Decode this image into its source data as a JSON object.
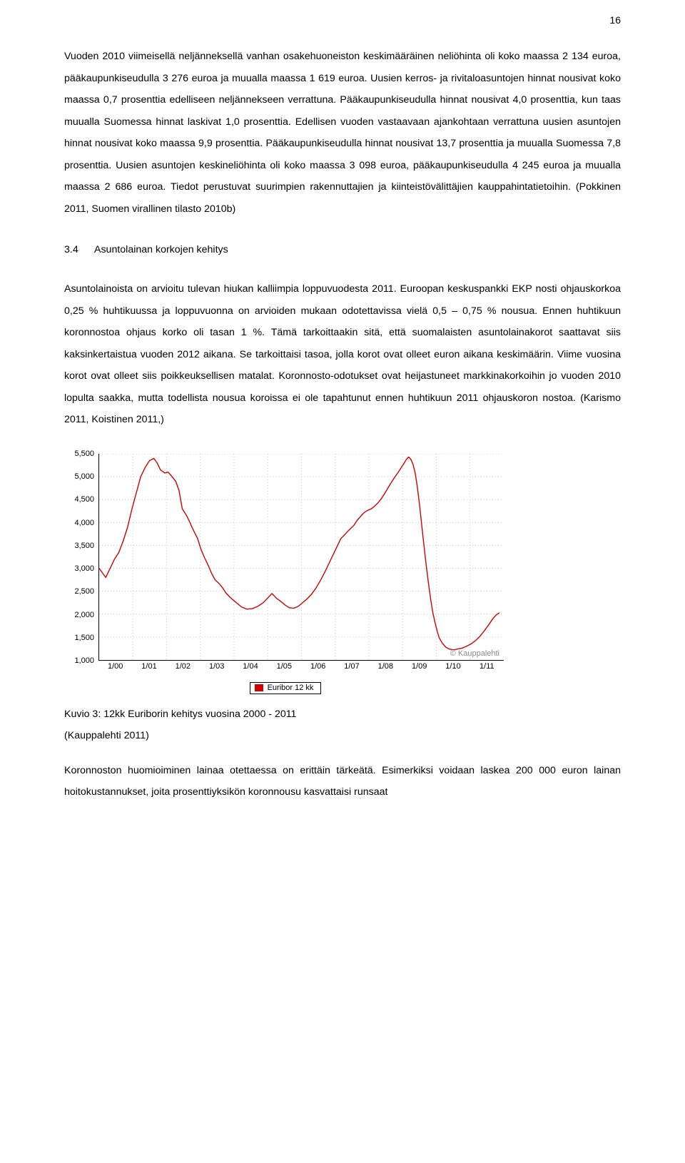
{
  "page_number": "16",
  "paragraph_1": "Vuoden 2010 viimeisellä neljänneksellä vanhan osakehuoneiston keskimääräinen neliöhinta oli koko maassa 2 134 euroa, pääkaupunkiseudulla 3 276 euroa ja muualla maassa 1 619 euroa. Uusien kerros- ja rivitaloasuntojen hinnat nousivat koko maassa 0,7 prosenttia edelliseen neljännekseen verrattuna. Pääkaupunkiseudulla hinnat nousivat 4,0 prosenttia, kun taas muualla Suomessa hinnat laskivat 1,0 prosenttia. Edellisen vuoden vastaavaan ajankohtaan verrattuna uusien asuntojen hinnat nousivat koko maassa 9,9 prosenttia. Pääkaupunkiseudulla hinnat nousivat 13,7 prosenttia ja muualla Suomessa 7,8 prosenttia. Uusien asuntojen keskineliöhinta oli koko maassa 3 098 euroa, pääkaupunkiseudulla 4 245 euroa ja muualla maassa 2 686 euroa. Tiedot perustuvat suurimpien rakennuttajien ja kiinteistövälittäjien kauppahintatietoihin. (Pokkinen 2011, Suomen virallinen tilasto 2010b)",
  "section_number": "3.4",
  "section_title": "Asuntolainan korkojen kehitys",
  "paragraph_2": "Asuntolainoista on arvioitu tulevan hiukan kalliimpia loppuvuodesta 2011. Euroopan keskuspankki EKP nosti ohjauskorkoa 0,25 % huhtikuussa ja loppuvuonna on arvioiden mukaan odotettavissa vielä 0,5 – 0,75 % nousua. Ennen huhtikuun koronnostoa ohjaus korko oli tasan 1 %. Tämä tarkoittaakin sitä, että suomalaisten asuntolainakorot saattavat siis kaksinkertaistua vuoden 2012 aikana. Se tarkoittaisi tasoa, jolla korot ovat olleet euron aikana keskimäärin. Viime vuosina korot ovat olleet siis poikkeuksellisen matalat. Koronnosto-odotukset ovat heijastuneet markkinakorkoihin jo vuoden 2010 lopulta saakka, mutta todellista nousua koroissa ei ole tapahtunut ennen huhtikuun 2011 ohjauskoron nostoa. (Karismo 2011, Koistinen 2011,)",
  "chart": {
    "type": "line",
    "y_min": 1000,
    "y_max": 5500,
    "y_tick_step": 500,
    "y_ticks": [
      "5,500",
      "5,000",
      "4,500",
      "4,000",
      "3,500",
      "3,000",
      "2,500",
      "2,000",
      "1,500",
      "1,000"
    ],
    "x_labels": [
      "1/00",
      "1/01",
      "1/02",
      "1/03",
      "1/04",
      "1/05",
      "1/06",
      "1/07",
      "1/08",
      "1/09",
      "1/10",
      "1/11"
    ],
    "line_color": "#d40000",
    "line_width": 1.4,
    "grid_color": "#c8c8c8",
    "background_color": "#ffffff",
    "axis_color": "#000000",
    "tick_font_size": 11,
    "watermark_text": "© Kauppalehti",
    "watermark_color": "#8a8a8a",
    "legend_label": "Euribor 12 kk",
    "legend_swatch_color": "#d40000",
    "series": [
      [
        0.0,
        3000
      ],
      [
        0.3,
        2900
      ],
      [
        0.6,
        2800
      ],
      [
        1.0,
        3000
      ],
      [
        1.4,
        3200
      ],
      [
        1.8,
        3350
      ],
      [
        2.2,
        3600
      ],
      [
        2.6,
        3900
      ],
      [
        3.0,
        4300
      ],
      [
        3.4,
        4650
      ],
      [
        3.8,
        5000
      ],
      [
        4.2,
        5200
      ],
      [
        4.6,
        5350
      ],
      [
        5.0,
        5400
      ],
      [
        5.3,
        5300
      ],
      [
        5.6,
        5150
      ],
      [
        6.0,
        5080
      ],
      [
        6.3,
        5100
      ],
      [
        6.6,
        5020
      ],
      [
        7.0,
        4900
      ],
      [
        7.3,
        4700
      ],
      [
        7.6,
        4300
      ],
      [
        8.0,
        4150
      ],
      [
        8.3,
        4000
      ],
      [
        8.6,
        3840
      ],
      [
        9.0,
        3650
      ],
      [
        9.3,
        3420
      ],
      [
        9.6,
        3250
      ],
      [
        10.0,
        3050
      ],
      [
        10.3,
        2880
      ],
      [
        10.6,
        2750
      ],
      [
        11.0,
        2660
      ],
      [
        11.3,
        2570
      ],
      [
        11.6,
        2460
      ],
      [
        12.0,
        2360
      ],
      [
        12.5,
        2260
      ],
      [
        13.0,
        2160
      ],
      [
        13.5,
        2110
      ],
      [
        14.0,
        2120
      ],
      [
        14.5,
        2170
      ],
      [
        15.0,
        2250
      ],
      [
        15.4,
        2350
      ],
      [
        15.8,
        2450
      ],
      [
        16.2,
        2350
      ],
      [
        16.6,
        2280
      ],
      [
        17.0,
        2200
      ],
      [
        17.4,
        2140
      ],
      [
        17.8,
        2130
      ],
      [
        18.2,
        2170
      ],
      [
        18.6,
        2250
      ],
      [
        19.0,
        2330
      ],
      [
        19.4,
        2430
      ],
      [
        19.8,
        2560
      ],
      [
        20.2,
        2720
      ],
      [
        20.6,
        2900
      ],
      [
        21.0,
        3100
      ],
      [
        21.4,
        3300
      ],
      [
        21.8,
        3500
      ],
      [
        22.1,
        3650
      ],
      [
        22.4,
        3720
      ],
      [
        22.7,
        3800
      ],
      [
        23.0,
        3870
      ],
      [
        23.3,
        3940
      ],
      [
        23.6,
        4050
      ],
      [
        24.0,
        4160
      ],
      [
        24.3,
        4230
      ],
      [
        24.6,
        4270
      ],
      [
        24.9,
        4300
      ],
      [
        25.2,
        4360
      ],
      [
        25.5,
        4430
      ],
      [
        25.8,
        4520
      ],
      [
        26.1,
        4630
      ],
      [
        26.4,
        4750
      ],
      [
        26.7,
        4870
      ],
      [
        27.0,
        4980
      ],
      [
        27.3,
        5080
      ],
      [
        27.6,
        5190
      ],
      [
        27.9,
        5300
      ],
      [
        28.1,
        5380
      ],
      [
        28.3,
        5430
      ],
      [
        28.5,
        5380
      ],
      [
        28.7,
        5270
      ],
      [
        28.9,
        5080
      ],
      [
        29.1,
        4770
      ],
      [
        29.3,
        4380
      ],
      [
        29.5,
        3940
      ],
      [
        29.7,
        3500
      ],
      [
        29.9,
        3080
      ],
      [
        30.1,
        2700
      ],
      [
        30.3,
        2350
      ],
      [
        30.5,
        2050
      ],
      [
        30.7,
        1830
      ],
      [
        30.9,
        1640
      ],
      [
        31.1,
        1480
      ],
      [
        31.4,
        1360
      ],
      [
        31.7,
        1280
      ],
      [
        32.0,
        1240
      ],
      [
        32.4,
        1220
      ],
      [
        32.8,
        1240
      ],
      [
        33.2,
        1260
      ],
      [
        33.6,
        1300
      ],
      [
        34.0,
        1350
      ],
      [
        34.4,
        1420
      ],
      [
        34.8,
        1510
      ],
      [
        35.2,
        1630
      ],
      [
        35.6,
        1760
      ],
      [
        36.0,
        1900
      ],
      [
        36.3,
        1980
      ],
      [
        36.6,
        2030
      ]
    ]
  },
  "caption_line1": "Kuvio 3: 12kk Euriborin kehitys vuosina 2000 - 2011",
  "caption_line2": "(Kauppalehti 2011)",
  "paragraph_3": "Koronnoston huomioiminen lainaa otettaessa on erittäin tärkeätä. Esimerkiksi voidaan laskea 200 000 euron lainan hoitokustannukset, joita prosenttiyksikön koronnousu kasvattaisi runsaat"
}
